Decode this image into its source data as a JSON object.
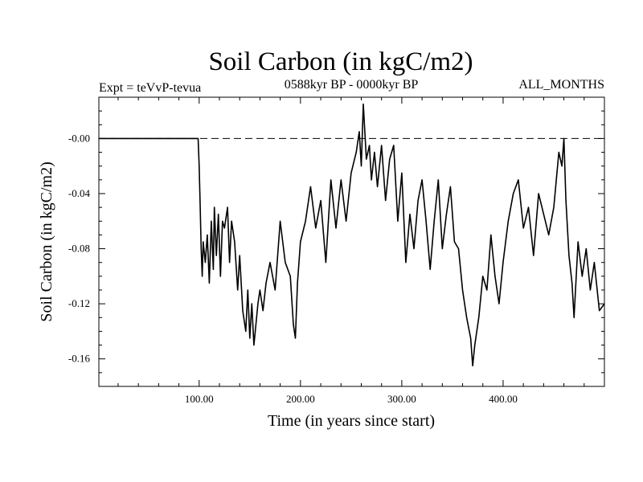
{
  "chart_data": {
    "type": "line",
    "title": "Soil Carbon (in kgC/m2)",
    "header_left": "Expt = teVvP-tevua",
    "header_center": "0588kyr BP - 0000kyr BP",
    "header_right": "ALL_MONTHS",
    "xlabel": "Time (in years since start)",
    "ylabel": "Soil Carbon (in kgC/m2)",
    "xlim": [
      1,
      500
    ],
    "ylim": [
      -0.18,
      0.03
    ],
    "x_ticks": [
      100,
      200,
      300,
      400
    ],
    "x_tick_labels": [
      "100.00",
      "200.00",
      "300.00",
      "400.00"
    ],
    "y_ticks": [
      0,
      -0.04,
      -0.08,
      -0.12,
      -0.16
    ],
    "y_tick_labels": [
      "-0.00",
      "-0.04",
      "-0.08",
      "-0.12",
      "-0.16"
    ],
    "reference_line": {
      "y": 0,
      "style": "dashed"
    },
    "line_color": "#000000",
    "series": [
      {
        "x": [
          1,
          50,
          99,
          100,
          101,
          102,
          103,
          104,
          106,
          108,
          110,
          112,
          114,
          115,
          117,
          119,
          121,
          123,
          125,
          128,
          130,
          132,
          135,
          138,
          140,
          143,
          146,
          148,
          150,
          152,
          154,
          156,
          158,
          160,
          163,
          166,
          170,
          175,
          180,
          185,
          190,
          193,
          195,
          197,
          200,
          205,
          210,
          215,
          220,
          225,
          230,
          235,
          240,
          245,
          250,
          255,
          258,
          260,
          262,
          265,
          268,
          270,
          273,
          276,
          280,
          284,
          288,
          292,
          296,
          300,
          304,
          308,
          312,
          316,
          320,
          324,
          328,
          332,
          336,
          340,
          344,
          348,
          352,
          356,
          360,
          364,
          368,
          370,
          372,
          376,
          380,
          384,
          388,
          392,
          396,
          400,
          405,
          410,
          415,
          420,
          425,
          430,
          435,
          440,
          445,
          450,
          455,
          458,
          460,
          462,
          465,
          468,
          470,
          474,
          478,
          482,
          486,
          490,
          495,
          500
        ],
        "y": [
          0,
          0,
          0,
          -0.02,
          -0.05,
          -0.08,
          -0.1,
          -0.075,
          -0.09,
          -0.07,
          -0.105,
          -0.06,
          -0.095,
          -0.05,
          -0.085,
          -0.055,
          -0.1,
          -0.06,
          -0.065,
          -0.05,
          -0.09,
          -0.06,
          -0.075,
          -0.11,
          -0.085,
          -0.125,
          -0.14,
          -0.11,
          -0.145,
          -0.12,
          -0.15,
          -0.135,
          -0.12,
          -0.11,
          -0.125,
          -0.105,
          -0.09,
          -0.11,
          -0.06,
          -0.09,
          -0.1,
          -0.135,
          -0.145,
          -0.105,
          -0.075,
          -0.06,
          -0.035,
          -0.065,
          -0.045,
          -0.09,
          -0.03,
          -0.065,
          -0.03,
          -0.06,
          -0.025,
          -0.01,
          0.005,
          -0.02,
          0.025,
          -0.015,
          -0.005,
          -0.03,
          -0.01,
          -0.035,
          -0.005,
          -0.045,
          -0.015,
          -0.005,
          -0.06,
          -0.025,
          -0.09,
          -0.055,
          -0.08,
          -0.045,
          -0.03,
          -0.06,
          -0.095,
          -0.06,
          -0.03,
          -0.08,
          -0.055,
          -0.035,
          -0.075,
          -0.08,
          -0.11,
          -0.13,
          -0.145,
          -0.165,
          -0.15,
          -0.13,
          -0.1,
          -0.11,
          -0.07,
          -0.1,
          -0.12,
          -0.09,
          -0.06,
          -0.04,
          -0.03,
          -0.065,
          -0.05,
          -0.085,
          -0.04,
          -0.055,
          -0.07,
          -0.05,
          -0.01,
          -0.02,
          0,
          -0.045,
          -0.085,
          -0.105,
          -0.13,
          -0.075,
          -0.1,
          -0.08,
          -0.11,
          -0.09,
          -0.125,
          -0.12
        ]
      }
    ]
  }
}
